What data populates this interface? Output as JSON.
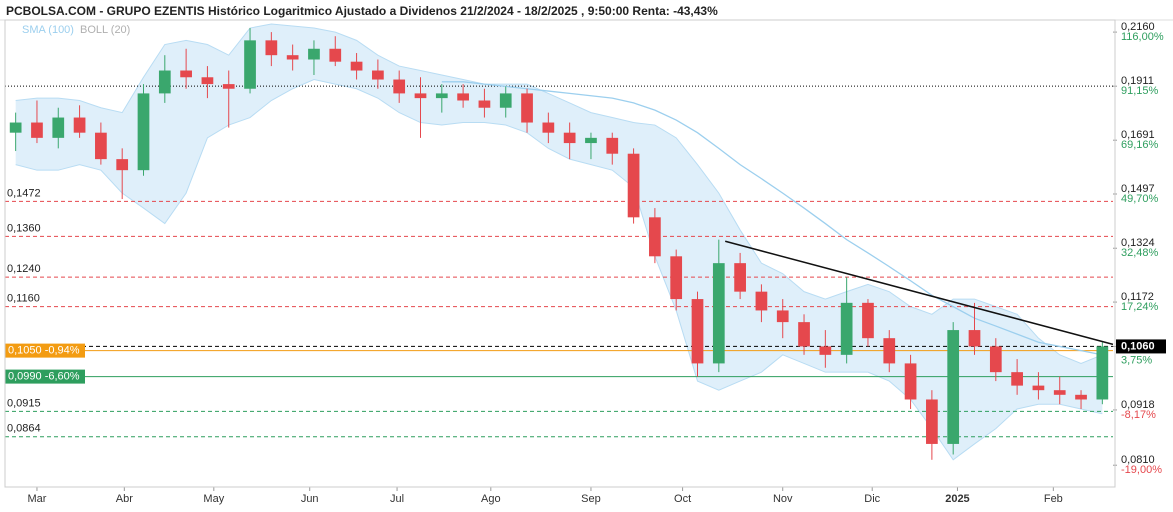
{
  "chart_data": {
    "type": "candlestick",
    "title": "PCBOLSA.COM - GRUPO EZENTIS Histórico Logaritmico Ajustado a Dividenos 21/2/2024 - 18/2/2025 , 9:50:00 Renta: -43,43%",
    "log_scale": true,
    "ylim": [
      0.0771,
      0.222
    ],
    "xlim": [
      0,
      52
    ],
    "up_color": "#3aa76d",
    "down_color": "#e5484d",
    "candles": {
      "open": [
        0.172,
        0.176,
        0.17,
        0.178,
        0.172,
        0.162,
        0.158,
        0.188,
        0.198,
        0.195,
        0.192,
        0.19,
        0.212,
        0.205,
        0.203,
        0.208,
        0.202,
        0.198,
        0.194,
        0.188,
        0.186,
        0.188,
        0.185,
        0.182,
        0.188,
        0.176,
        0.172,
        0.168,
        0.17,
        0.164,
        0.142,
        0.13,
        0.118,
        0.102,
        0.128,
        0.12,
        0.115,
        0.112,
        0.106,
        0.104,
        0.117,
        0.108,
        0.102,
        0.094,
        0.085,
        0.11,
        0.106,
        0.1,
        0.097,
        0.096,
        0.095,
        0.094
      ],
      "high": [
        0.18,
        0.185,
        0.182,
        0.183,
        0.176,
        0.166,
        0.192,
        0.205,
        0.208,
        0.2,
        0.198,
        0.218,
        0.216,
        0.21,
        0.212,
        0.214,
        0.206,
        0.203,
        0.198,
        0.195,
        0.192,
        0.192,
        0.19,
        0.191,
        0.19,
        0.18,
        0.176,
        0.172,
        0.172,
        0.166,
        0.145,
        0.132,
        0.12,
        0.135,
        0.131,
        0.122,
        0.118,
        0.114,
        0.11,
        0.124,
        0.118,
        0.11,
        0.104,
        0.096,
        0.112,
        0.117,
        0.108,
        0.103,
        0.1,
        0.099,
        0.096,
        0.107
      ],
      "low": [
        0.165,
        0.168,
        0.166,
        0.17,
        0.16,
        0.148,
        0.156,
        0.184,
        0.19,
        0.186,
        0.174,
        0.188,
        0.2,
        0.198,
        0.196,
        0.2,
        0.194,
        0.19,
        0.184,
        0.17,
        0.18,
        0.182,
        0.178,
        0.178,
        0.172,
        0.168,
        0.162,
        0.162,
        0.16,
        0.14,
        0.128,
        0.115,
        0.099,
        0.1,
        0.118,
        0.112,
        0.108,
        0.104,
        0.101,
        0.102,
        0.106,
        0.1,
        0.092,
        0.082,
        0.083,
        0.104,
        0.098,
        0.095,
        0.094,
        0.093,
        0.092,
        0.093
      ],
      "close": [
        0.176,
        0.17,
        0.178,
        0.172,
        0.162,
        0.158,
        0.188,
        0.198,
        0.195,
        0.192,
        0.19,
        0.212,
        0.205,
        0.203,
        0.208,
        0.202,
        0.198,
        0.194,
        0.188,
        0.186,
        0.188,
        0.185,
        0.182,
        0.188,
        0.176,
        0.172,
        0.168,
        0.17,
        0.164,
        0.142,
        0.13,
        0.118,
        0.102,
        0.128,
        0.12,
        0.115,
        0.112,
        0.106,
        0.104,
        0.117,
        0.108,
        0.102,
        0.094,
        0.085,
        0.11,
        0.106,
        0.1,
        0.097,
        0.096,
        0.095,
        0.094,
        0.106
      ]
    },
    "sma": {
      "name": "SMA (100)",
      "color": "#9ccfee",
      "values": [
        null,
        null,
        null,
        null,
        null,
        null,
        null,
        null,
        null,
        null,
        null,
        null,
        null,
        null,
        null,
        null,
        null,
        null,
        null,
        null,
        0.193,
        0.193,
        0.192,
        0.191,
        0.19,
        0.189,
        0.188,
        0.187,
        0.186,
        0.184,
        0.181,
        0.177,
        0.172,
        0.166,
        0.16,
        0.155,
        0.15,
        0.145,
        0.14,
        0.135,
        0.131,
        0.127,
        0.123,
        0.119,
        0.116,
        0.113,
        0.111,
        0.109,
        0.107,
        0.106,
        0.105,
        0.104
      ]
    },
    "bollinger": {
      "name": "BOLL (20)",
      "color": "#d4e9f8",
      "legend_color": "#b0b0b0",
      "upper": [
        0.185,
        0.186,
        0.186,
        0.185,
        0.182,
        0.18,
        0.195,
        0.21,
        0.212,
        0.21,
        0.205,
        0.218,
        0.22,
        0.219,
        0.218,
        0.216,
        0.212,
        0.205,
        0.2,
        0.198,
        0.196,
        0.194,
        0.192,
        0.192,
        0.192,
        0.188,
        0.184,
        0.18,
        0.178,
        0.176,
        0.175,
        0.17,
        0.16,
        0.15,
        0.138,
        0.128,
        0.125,
        0.12,
        0.118,
        0.12,
        0.122,
        0.12,
        0.116,
        0.114,
        0.118,
        0.118,
        0.116,
        0.114,
        0.108,
        0.104,
        0.102,
        0.104
      ],
      "lower": [
        0.16,
        0.158,
        0.158,
        0.16,
        0.158,
        0.15,
        0.145,
        0.14,
        0.15,
        0.17,
        0.175,
        0.178,
        0.185,
        0.19,
        0.194,
        0.192,
        0.19,
        0.186,
        0.18,
        0.176,
        0.175,
        0.176,
        0.176,
        0.175,
        0.172,
        0.166,
        0.162,
        0.16,
        0.158,
        0.152,
        0.13,
        0.115,
        0.098,
        0.096,
        0.098,
        0.1,
        0.104,
        0.102,
        0.1,
        0.1,
        0.1,
        0.098,
        0.094,
        0.088,
        0.082,
        0.085,
        0.088,
        0.092,
        0.093,
        0.093,
        0.092,
        0.091
      ]
    },
    "trendline": {
      "x": [
        33.8,
        52
      ],
      "y": [
        0.1345,
        0.1065
      ],
      "color": "#111111"
    },
    "xticks": [
      {
        "value": 1.5,
        "label": "Mar"
      },
      {
        "value": 5.6,
        "label": "Abr"
      },
      {
        "value": 9.8,
        "label": "May"
      },
      {
        "value": 14.3,
        "label": "Jun"
      },
      {
        "value": 18.4,
        "label": "Jul"
      },
      {
        "value": 22.8,
        "label": "Ago"
      },
      {
        "value": 27.5,
        "label": "Sep"
      },
      {
        "value": 31.8,
        "label": "Oct"
      },
      {
        "value": 36.5,
        "label": "Nov"
      },
      {
        "value": 40.7,
        "label": "Dic"
      },
      {
        "value": 44.7,
        "label": "2025"
      },
      {
        "value": 49.2,
        "label": "Feb"
      }
    ],
    "yticks": [
      {
        "value": 0.216,
        "label": "0,2160",
        "pct": "116,00%",
        "pct_color": "#2e9e5e"
      },
      {
        "value": 0.1911,
        "label": "0,1911",
        "pct": "91,15%",
        "pct_color": "#2e9e5e"
      },
      {
        "value": 0.1691,
        "label": "0,1691",
        "pct": "69,16%",
        "pct_color": "#2e9e5e"
      },
      {
        "value": 0.1497,
        "label": "0,1497",
        "pct": "49,70%",
        "pct_color": "#2e9e5e"
      },
      {
        "value": 0.1324,
        "label": "0,1324",
        "pct": "32,48%",
        "pct_color": "#2e9e5e"
      },
      {
        "value": 0.1172,
        "label": "0,1172",
        "pct": "17,24%",
        "pct_color": "#2e9e5e"
      },
      {
        "value": 0.106,
        "label": "0,1060",
        "pct": "3,75%",
        "pct_color": "#2e9e5e",
        "badge": "#000000"
      },
      {
        "value": 0.0918,
        "label": "0,0918",
        "pct": "-8,17%",
        "pct_color": "#e5484d"
      },
      {
        "value": 0.081,
        "label": "0,0810",
        "pct": "-19,00%",
        "pct_color": "#e5484d"
      }
    ],
    "levels": [
      {
        "value": 0.1911,
        "color": "#000000",
        "style": "dotted"
      },
      {
        "value": 0.1472,
        "label": "0,1472",
        "color": "#e5484d",
        "style": "dashed"
      },
      {
        "value": 0.136,
        "label": "0,1360",
        "color": "#e5484d",
        "style": "dashed"
      },
      {
        "value": 0.124,
        "label": "0,1240",
        "color": "#e5484d",
        "style": "dashed"
      },
      {
        "value": 0.116,
        "label": "0,1160",
        "color": "#e5484d",
        "style": "dashed"
      },
      {
        "value": 0.106,
        "color": "#000000",
        "style": "dashed"
      },
      {
        "value": 0.105,
        "label": "0,1050 -0,94%",
        "color": "#f39c12",
        "style": "solid",
        "badge": true
      },
      {
        "value": 0.099,
        "label": "0,0990 -6,60%",
        "color": "#2e9e5e",
        "style": "solid",
        "badge": true
      },
      {
        "value": 0.0915,
        "label": "0,0915",
        "color": "#2e9e5e",
        "style": "dashed"
      },
      {
        "value": 0.0864,
        "label": "0,0864",
        "color": "#2e9e5e",
        "style": "dashed"
      }
    ]
  }
}
